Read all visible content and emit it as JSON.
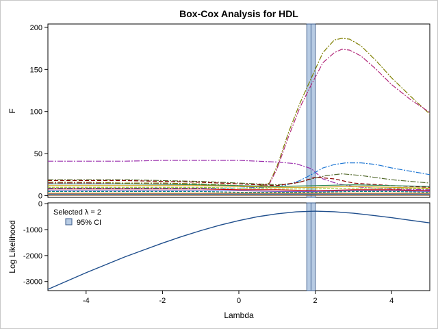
{
  "chart_data": [
    {
      "type": "line",
      "title": "Box-Cox Analysis for HDL",
      "xlabel": "",
      "ylabel": "F",
      "xlim": [
        -5,
        5
      ],
      "ylim": [
        -2,
        204
      ],
      "yticks": [
        0,
        50,
        100,
        150,
        200
      ],
      "grid": false,
      "lambda_band": {
        "from": 1.78,
        "to": 2.0,
        "center": 1.89,
        "color": "#b8cce4"
      },
      "series": [
        {
          "color": "#7f7f00",
          "dash": "8 2 2 2",
          "x": [
            -5,
            -4,
            -3,
            -2,
            -1,
            0,
            0.5,
            0.8,
            1.0,
            1.3,
            1.6,
            1.9,
            2.2,
            2.5,
            2.7,
            2.9,
            3.2,
            3.6,
            4,
            4.5,
            5
          ],
          "y": [
            16,
            16,
            15,
            15,
            14,
            12,
            11,
            15,
            35,
            75,
            110,
            140,
            170,
            185,
            187,
            186,
            178,
            160,
            140,
            118,
            97
          ]
        },
        {
          "color": "#b2287a",
          "dash": "8 2 2 2",
          "x": [
            -5,
            -4,
            -3,
            -2,
            -1,
            0,
            0.5,
            0.8,
            1.0,
            1.3,
            1.6,
            1.9,
            2.2,
            2.5,
            2.7,
            2.9,
            3.2,
            3.6,
            4,
            4.5,
            5
          ],
          "y": [
            15,
            15,
            14,
            14,
            13,
            11,
            10,
            14,
            32,
            70,
            105,
            132,
            158,
            170,
            174,
            173,
            166,
            150,
            132,
            114,
            99
          ]
        },
        {
          "color": "#9b30ad",
          "dash": "8 2 2 2",
          "x": [
            -5,
            -4,
            -3,
            -2,
            -1,
            0,
            0.5,
            1.0,
            1.5,
            1.9,
            2.2,
            2.6,
            3,
            3.5,
            4,
            5
          ],
          "y": [
            41,
            41,
            41,
            42,
            42,
            42,
            41,
            40,
            38,
            32,
            20,
            14,
            11,
            9,
            8,
            7
          ]
        },
        {
          "color": "#1f77d4",
          "dash": "8 2 2 2",
          "x": [
            -5,
            -3,
            -1,
            0,
            0.8,
            1.2,
            1.6,
            1.9,
            2.2,
            2.5,
            2.8,
            3.2,
            3.6,
            4,
            4.5,
            5
          ],
          "y": [
            9,
            9,
            9,
            9,
            10,
            12,
            18,
            25,
            33,
            37,
            39,
            39,
            37,
            33,
            29,
            25
          ]
        },
        {
          "color": "#556b2f",
          "dash": "8 2 2 2",
          "x": [
            -5,
            -3,
            -1,
            0,
            1,
            1.5,
            1.9,
            2.3,
            2.7,
            3.2,
            4,
            5
          ],
          "y": [
            19,
            19,
            17,
            15,
            13,
            15,
            20,
            24,
            26,
            24,
            19,
            15
          ]
        },
        {
          "color": "#8b0000",
          "dash": "6 3",
          "x": [
            -5,
            -3,
            -1,
            0,
            1,
            1.6,
            2.0,
            2.5,
            3,
            4,
            5
          ],
          "y": [
            18,
            18,
            16,
            14,
            12,
            16,
            22,
            20,
            15,
            12,
            10
          ]
        },
        {
          "color": "#2e8b57",
          "dash": "",
          "x": [
            -5,
            -3,
            -1,
            0,
            1,
            2,
            3,
            4,
            5
          ],
          "y": [
            14,
            14,
            13,
            12,
            11,
            12,
            13,
            12,
            11
          ]
        },
        {
          "color": "#d4a017",
          "dash": "",
          "x": [
            -5,
            -3,
            -1,
            0,
            1,
            2,
            3,
            4,
            5
          ],
          "y": [
            12,
            12,
            12,
            11,
            10,
            10,
            11,
            10,
            9
          ]
        },
        {
          "color": "#9acd32",
          "dash": "4 2",
          "x": [
            -5,
            -3,
            -1,
            0,
            1,
            2,
            3,
            4,
            5
          ],
          "y": [
            10,
            10,
            10,
            9,
            8,
            8,
            9,
            9,
            8
          ]
        },
        {
          "color": "#cc0000",
          "dash": "",
          "x": [
            -5,
            -3,
            -1,
            0,
            1,
            2,
            3,
            4,
            5
          ],
          "y": [
            8,
            8,
            8,
            7,
            7,
            6,
            7,
            7,
            6
          ]
        },
        {
          "color": "#6a5acd",
          "dash": "",
          "x": [
            -5,
            -3,
            -1,
            0,
            1,
            2,
            3,
            4,
            5
          ],
          "y": [
            6,
            6,
            6,
            6,
            5,
            5,
            6,
            6,
            5
          ]
        },
        {
          "color": "#008b8b",
          "dash": "4 2",
          "x": [
            -5,
            -3,
            -1,
            0,
            1,
            2,
            3,
            4,
            5
          ],
          "y": [
            5,
            5,
            5,
            4,
            4,
            4,
            5,
            5,
            4
          ]
        },
        {
          "color": "#ff8c00",
          "dash": "",
          "x": [
            -5,
            -3,
            -1,
            0,
            1,
            2,
            3,
            4,
            5
          ],
          "y": [
            3,
            3,
            3,
            3,
            3,
            3,
            3,
            3,
            3
          ]
        },
        {
          "color": "#4169e1",
          "dash": "",
          "x": [
            -5,
            -3,
            -1,
            0,
            1,
            2,
            3,
            4,
            5
          ],
          "y": [
            2,
            2,
            2,
            2,
            2,
            2,
            2,
            2,
            2
          ]
        },
        {
          "color": "#228b22",
          "dash": "",
          "x": [
            -5,
            -3,
            -1,
            0,
            1,
            2,
            3,
            4,
            5
          ],
          "y": [
            1,
            1,
            1,
            1,
            1,
            1,
            1,
            1,
            1
          ]
        },
        {
          "color": "#a0522d",
          "dash": "",
          "x": [
            -5,
            -3,
            -1,
            0,
            1,
            2,
            3,
            4,
            5
          ],
          "y": [
            0.5,
            0.5,
            0.5,
            0.5,
            0.5,
            0.5,
            0.5,
            0.5,
            0.5
          ]
        }
      ]
    },
    {
      "type": "line",
      "title": "",
      "xlabel": "Lambda",
      "ylabel": "Log Likelihood",
      "xlim": [
        -5,
        5
      ],
      "ylim": [
        -3350,
        30
      ],
      "xticks": [
        -4,
        -2,
        0,
        2,
        4
      ],
      "yticks": [
        0,
        -1000,
        -2000,
        -3000
      ],
      "grid": false,
      "lambda_band": {
        "from": 1.78,
        "to": 2.0,
        "center": 1.89,
        "color": "#b8cce4"
      },
      "legend": {
        "position": "top-left",
        "selected_text": "Selected λ = 2",
        "ci_text": "95% CI",
        "ci_color": "#b8cce4"
      },
      "series": [
        {
          "color": "#1f4e8c",
          "dash": "",
          "x": [
            -5,
            -4.5,
            -4,
            -3.5,
            -3,
            -2.5,
            -2,
            -1.5,
            -1,
            -0.5,
            0,
            0.5,
            1,
            1.5,
            2,
            2.5,
            3,
            3.5,
            4,
            4.5,
            5
          ],
          "y": [
            -3300,
            -2980,
            -2660,
            -2360,
            -2060,
            -1790,
            -1520,
            -1270,
            -1040,
            -830,
            -650,
            -500,
            -390,
            -315,
            -290,
            -310,
            -370,
            -450,
            -540,
            -640,
            -740
          ]
        }
      ]
    }
  ]
}
